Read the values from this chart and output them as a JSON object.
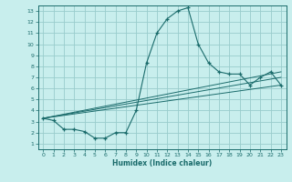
{
  "title": "",
  "xlabel": "Humidex (Indice chaleur)",
  "bg_color": "#c8eeed",
  "grid_color": "#99cccc",
  "line_color": "#1a6b6b",
  "xlim": [
    -0.5,
    23.5
  ],
  "ylim": [
    0.5,
    13.5
  ],
  "xticks": [
    0,
    1,
    2,
    3,
    4,
    5,
    6,
    7,
    8,
    9,
    10,
    11,
    12,
    13,
    14,
    15,
    16,
    17,
    18,
    19,
    20,
    21,
    22,
    23
  ],
  "yticks": [
    1,
    2,
    3,
    4,
    5,
    6,
    7,
    8,
    9,
    10,
    11,
    12,
    13
  ],
  "main_curve_x": [
    0,
    1,
    2,
    3,
    4,
    5,
    6,
    7,
    8,
    9,
    10,
    11,
    12,
    13,
    14,
    15,
    16,
    17,
    18,
    19,
    20,
    21,
    22,
    23
  ],
  "main_curve_y": [
    3.3,
    3.1,
    2.3,
    2.3,
    2.1,
    1.5,
    1.5,
    2.0,
    2.0,
    4.0,
    8.3,
    11.0,
    12.3,
    13.0,
    13.3,
    10.0,
    8.3,
    7.5,
    7.3,
    7.3,
    6.3,
    7.0,
    7.5,
    6.3
  ],
  "line1_end_y": 6.3,
  "line2_end_y": 7.5,
  "line3_end_y": 7.0,
  "line_start_x": 0,
  "line_start_y": 3.3,
  "line_end_x": 23
}
